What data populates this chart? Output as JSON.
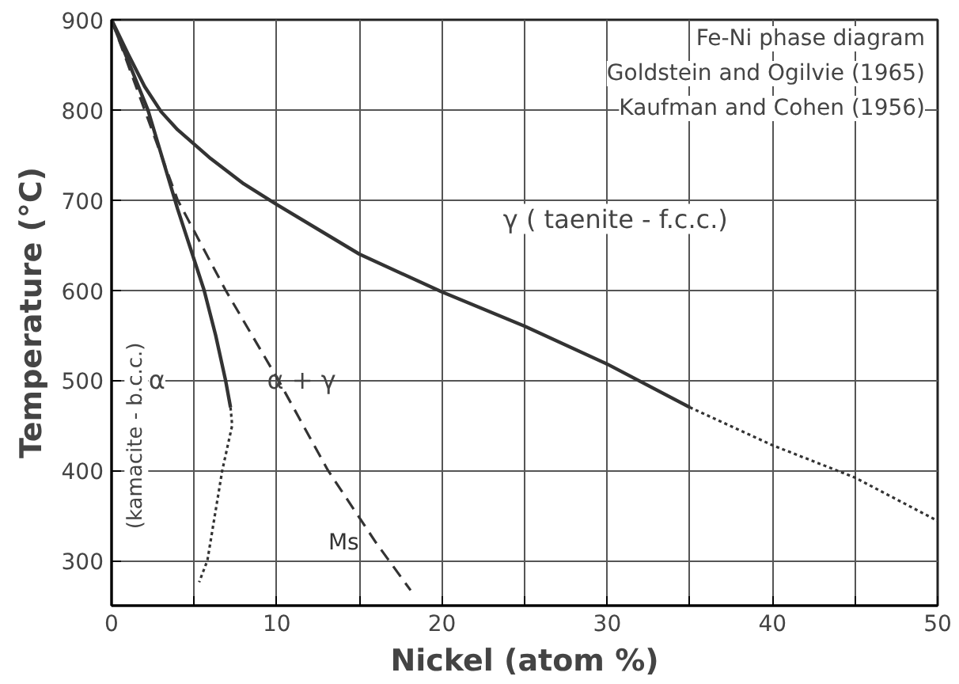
{
  "chart_data": {
    "type": "line",
    "xlabel": "Nickel (atom %)",
    "ylabel": "Temperature (°C)",
    "xlim": [
      0,
      50
    ],
    "ylim": [
      250,
      900
    ],
    "xticks": [
      0,
      {
        "value": 5,
        "label": null
      },
      10,
      {
        "value": 15,
        "label": null
      },
      20,
      {
        "value": 25,
        "label": null
      },
      30,
      {
        "value": 35,
        "label": null
      },
      40,
      {
        "value": 45,
        "label": null
      },
      50
    ],
    "yticks": [
      300,
      400,
      500,
      600,
      700,
      800,
      900
    ],
    "grid": true,
    "marker": "none",
    "series": [
      {
        "color": "#333333",
        "line_style": "solid",
        "x": [
          0,
          1,
          2,
          3,
          4,
          6,
          8,
          10,
          15,
          20,
          25,
          30,
          35
        ],
        "values": [
          900,
          862,
          826,
          798,
          778,
          746,
          718,
          695,
          640,
          598,
          560,
          518,
          470
        ]
      },
      {
        "color": "#333333",
        "line_style": "dotted",
        "x": [
          35,
          40,
          45,
          50
        ],
        "values": [
          470,
          428,
          392,
          344
        ]
      },
      {
        "color": "#333333",
        "line_style": "solid",
        "x": [
          0,
          2.2,
          4,
          5.6,
          6.3,
          6.9,
          7.2
        ],
        "values": [
          900,
          800,
          690,
          600,
          550,
          500,
          470
        ]
      },
      {
        "color": "#333333",
        "line_style": "dotted",
        "x": [
          7.2,
          7.3,
          6.7,
          5.8,
          5.3
        ],
        "values": [
          470,
          450,
          400,
          300,
          276
        ]
      },
      {
        "name": "Ms",
        "color": "#333333",
        "line_style": "dashed",
        "x": [
          0,
          2,
          4,
          6.9,
          10.1,
          13.1,
          16,
          18.1
        ],
        "values": [
          900,
          800,
          700,
          600,
          500,
          400,
          320,
          267
        ]
      }
    ],
    "annotations": [
      "Fe-Ni phase diagram",
      "Goldstein and Ogilvie (1965)",
      "Kaufman and Cohen (1956)",
      "(kamacite - b.c.c.)",
      "α",
      "α + γ",
      "γ ( taenite - f.c.c.)"
    ]
  }
}
